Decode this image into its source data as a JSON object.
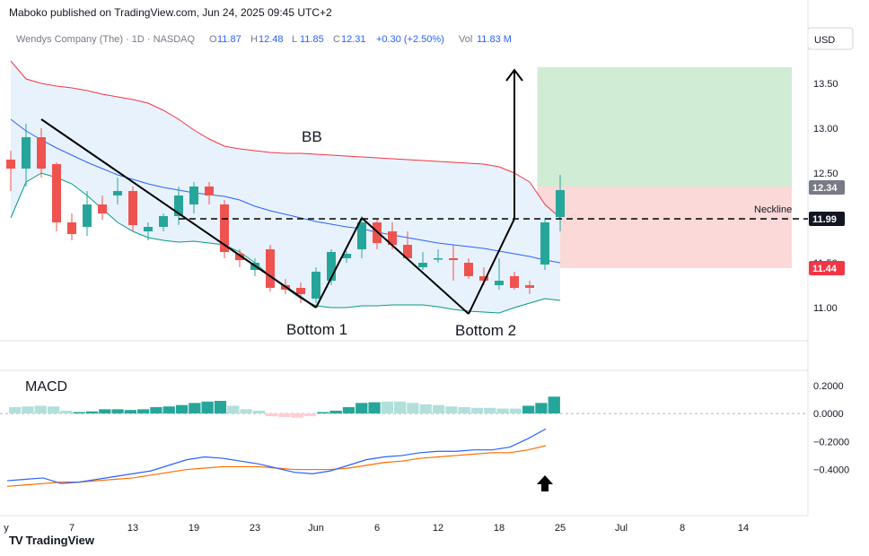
{
  "header": {
    "publisher": "Maboko published on TradingView.com, Jun 24, 2025 09:45 UTC+2"
  },
  "legend": {
    "symbol": "Wendys Company (The) · 1D · NASDAQ",
    "o_label": "O",
    "o": "11.87",
    "h_label": "H",
    "h": "12.48",
    "l_label": "L",
    "l": "11.85",
    "c_label": "C",
    "c": "12.31",
    "change": "+0.30 (+2.50%)",
    "vol_label": "Vol",
    "vol": "11.83 M"
  },
  "currency": "USD",
  "annotations": {
    "bb": "BB",
    "bottom1": "Bottom 1",
    "bottom2": "Bottom 2",
    "neckline": "Neckline",
    "macd": "MACD"
  },
  "price_badges": [
    {
      "value": "12.34",
      "color": "#787b86"
    },
    {
      "value": "11.99",
      "color": "#131722"
    },
    {
      "value": "11.44",
      "color": "#f23645"
    }
  ],
  "footer": {
    "brand": "TradingView",
    "logo": "TV"
  },
  "colors": {
    "up": "#26a69a",
    "down": "#ef5350",
    "bb_upper": "#f23645",
    "bb_mid": "#2962ff",
    "bb_lower": "#089981",
    "bb_fill": "#e8f2fd",
    "macd": "#2962ff",
    "signal": "#ff6d00",
    "target": "#d1ecd4",
    "stop": "#fbd9d9"
  },
  "chart_data": [
    {
      "type": "candlestick",
      "title": "Wendys Company (The) · 1D · NASDAQ",
      "ylim": [
        10.83,
        13.83
      ],
      "yticks": [
        "13.50",
        "13.00",
        "12.50",
        "12.00",
        "11.50",
        "11.00"
      ],
      "xticks": [
        "y",
        "7",
        "13",
        "19",
        "23",
        "Jun",
        "6",
        "12",
        "18",
        "25",
        "Jul",
        "8",
        "14"
      ],
      "xtick_index": [
        0,
        4,
        8,
        12,
        16,
        20,
        24,
        28,
        32,
        36,
        40,
        44,
        48
      ],
      "candles": [
        [
          12.65,
          12.75,
          12.3,
          12.55
        ],
        [
          12.55,
          13.05,
          12.35,
          12.9
        ],
        [
          12.9,
          13.0,
          12.45,
          12.55
        ],
        [
          12.6,
          12.62,
          11.85,
          11.95
        ],
        [
          11.95,
          12.05,
          11.75,
          11.82
        ],
        [
          11.9,
          12.3,
          11.8,
          12.15
        ],
        [
          12.15,
          12.25,
          11.98,
          12.05
        ],
        [
          12.25,
          12.45,
          12.15,
          12.3
        ],
        [
          12.3,
          12.35,
          11.85,
          11.92
        ],
        [
          11.85,
          11.95,
          11.75,
          11.9
        ],
        [
          11.9,
          12.05,
          11.85,
          12.02
        ],
        [
          12.02,
          12.35,
          11.92,
          12.25
        ],
        [
          12.15,
          12.4,
          12.05,
          12.35
        ],
        [
          12.35,
          12.4,
          12.15,
          12.25
        ],
        [
          12.15,
          12.2,
          11.55,
          11.62
        ],
        [
          11.6,
          11.65,
          11.45,
          11.53
        ],
        [
          11.42,
          11.55,
          11.35,
          11.5
        ],
        [
          11.65,
          11.7,
          11.18,
          11.22
        ],
        [
          11.25,
          11.32,
          11.15,
          11.2
        ],
        [
          11.22,
          11.28,
          11.05,
          11.15
        ],
        [
          11.1,
          11.45,
          11.05,
          11.4
        ],
        [
          11.3,
          11.65,
          11.25,
          11.62
        ],
        [
          11.55,
          11.63,
          11.5,
          11.6
        ],
        [
          11.65,
          12.02,
          11.55,
          11.95
        ],
        [
          11.95,
          11.98,
          11.65,
          11.72
        ],
        [
          11.85,
          11.95,
          11.65,
          11.7
        ],
        [
          11.7,
          11.85,
          11.55,
          11.55
        ],
        [
          11.45,
          11.62,
          11.42,
          11.5
        ],
        [
          11.55,
          11.65,
          11.5,
          11.55
        ],
        [
          11.55,
          11.7,
          11.3,
          11.53
        ],
        [
          11.5,
          11.55,
          11.32,
          11.35
        ],
        [
          11.35,
          11.45,
          11.25,
          11.3
        ],
        [
          11.25,
          11.55,
          11.2,
          11.3
        ],
        [
          11.35,
          11.4,
          11.2,
          11.22
        ],
        [
          11.25,
          11.3,
          11.15,
          11.22
        ],
        [
          11.48,
          12.0,
          11.42,
          11.95
        ],
        [
          12.01,
          12.48,
          11.85,
          12.31
        ]
      ],
      "bollinger": {
        "upper": [
          13.75,
          13.55,
          13.5,
          13.47,
          13.45,
          13.42,
          13.38,
          13.35,
          13.32,
          13.28,
          13.2,
          13.1,
          12.98,
          12.88,
          12.8,
          12.77,
          12.75,
          12.73,
          12.72,
          12.72,
          12.71,
          12.7,
          12.69,
          12.68,
          12.67,
          12.66,
          12.65,
          12.64,
          12.63,
          12.62,
          12.61,
          12.6,
          12.57,
          12.5,
          12.4,
          12.15,
          12.0
        ],
        "middle": [
          13.1,
          12.97,
          12.87,
          12.78,
          12.7,
          12.62,
          12.55,
          12.48,
          12.43,
          12.38,
          12.34,
          12.31,
          12.28,
          12.26,
          12.24,
          12.2,
          12.13,
          12.08,
          12.04,
          12.0,
          11.96,
          11.93,
          11.9,
          11.88,
          11.84,
          11.81,
          11.78,
          11.75,
          11.72,
          11.7,
          11.68,
          11.66,
          11.63,
          11.6,
          11.57,
          11.53,
          11.5
        ],
        "lower": [
          12.0,
          12.4,
          12.5,
          12.45,
          12.38,
          12.25,
          12.1,
          11.95,
          11.85,
          11.78,
          11.75,
          11.73,
          11.74,
          11.72,
          11.7,
          11.62,
          11.5,
          11.35,
          11.22,
          11.1,
          11.02,
          11.0,
          11.0,
          11.02,
          11.02,
          11.03,
          11.03,
          11.03,
          11.01,
          10.98,
          10.96,
          10.95,
          10.94,
          11.0,
          11.05,
          11.1,
          11.08
        ]
      },
      "pattern_lines": [
        {
          "name": "decline",
          "points": [
            [
              1,
              13.1
            ],
            [
              19,
              11.0
            ]
          ]
        },
        {
          "name": "rise-to-neck",
          "points": [
            [
              19,
              11.0
            ],
            [
              22,
              12.0
            ]
          ]
        },
        {
          "name": "decline-2",
          "points": [
            [
              22,
              12.0
            ],
            [
              29,
              10.93
            ]
          ]
        },
        {
          "name": "breakout",
          "points": [
            [
              29,
              10.93
            ],
            [
              32,
              11.99
            ],
            [
              32,
              13.65
            ]
          ]
        }
      ],
      "neckline": 11.99,
      "target_zone": [
        12.35,
        13.68
      ],
      "stop_zone": [
        11.44,
        12.35
      ],
      "zone_index": [
        33.5,
        48
      ]
    },
    {
      "type": "macd",
      "title": "MACD",
      "ylim": [
        -0.55,
        0.25
      ],
      "yticks": [
        "0.2000",
        "0.0000",
        "−0.2000",
        "−0.4000"
      ],
      "histogram": [
        0.045,
        0.05,
        0.055,
        0.05,
        0.02,
        0.01,
        0.015,
        0.03,
        0.03,
        0.025,
        0.03,
        0.045,
        0.05,
        0.06,
        0.075,
        0.085,
        0.09,
        0.055,
        0.03,
        0.02,
        -0.02,
        -0.025,
        -0.03,
        -0.02,
        0.01,
        0.02,
        0.045,
        0.075,
        0.08,
        0.085,
        0.085,
        0.075,
        0.065,
        0.06,
        0.05,
        0.045,
        0.04,
        0.04,
        0.035,
        0.035,
        0.055,
        0.075,
        0.12
      ],
      "macd": [
        -0.48,
        -0.47,
        -0.46,
        -0.5,
        -0.49,
        -0.47,
        -0.45,
        -0.43,
        -0.41,
        -0.37,
        -0.33,
        -0.31,
        -0.32,
        -0.34,
        -0.36,
        -0.39,
        -0.42,
        -0.43,
        -0.41,
        -0.37,
        -0.33,
        -0.31,
        -0.3,
        -0.28,
        -0.27,
        -0.27,
        -0.26,
        -0.26,
        -0.24,
        -0.18,
        -0.11
      ],
      "signal": [
        -0.52,
        -0.51,
        -0.5,
        -0.49,
        -0.49,
        -0.48,
        -0.47,
        -0.46,
        -0.44,
        -0.42,
        -0.4,
        -0.39,
        -0.38,
        -0.38,
        -0.38,
        -0.39,
        -0.4,
        -0.4,
        -0.4,
        -0.39,
        -0.37,
        -0.35,
        -0.34,
        -0.32,
        -0.31,
        -0.3,
        -0.29,
        -0.28,
        -0.28,
        -0.26,
        -0.23
      ]
    }
  ]
}
